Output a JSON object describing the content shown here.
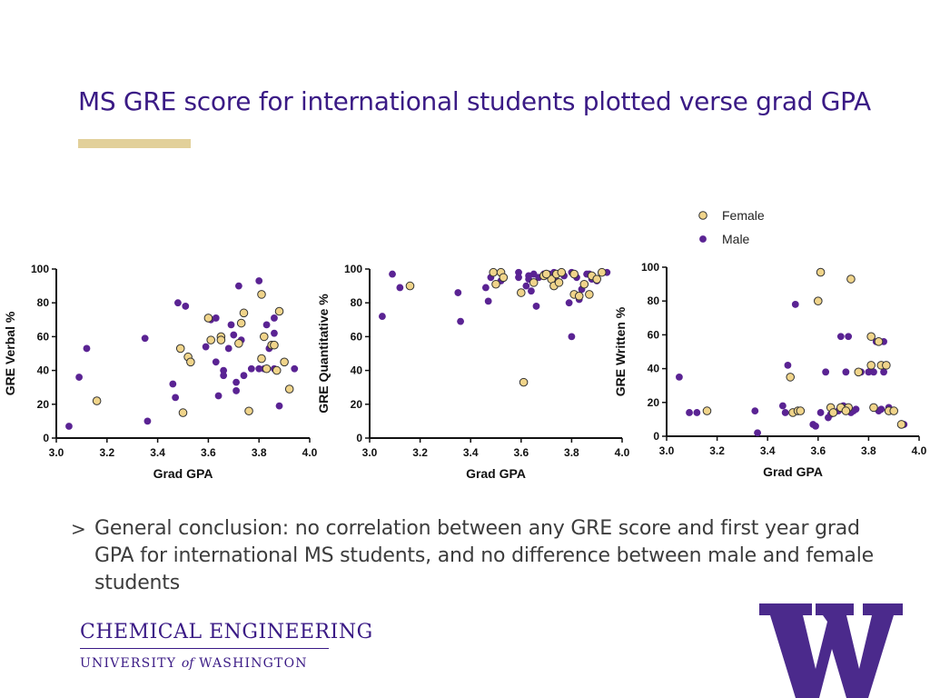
{
  "slide": {
    "title": "MS GRE score for international students plotted verse grad GPA",
    "bullet_marker": ">",
    "bullet": "General conclusion: no correlation between any GRE score and first year grad GPA for international MS students, and no difference between male and female students"
  },
  "footer": {
    "department": "CHEMICAL ENGINEERING",
    "university_before": "UNIVERSITY",
    "university_of": "of",
    "university_after": "WASHINGTON",
    "logo_letter": "W"
  },
  "colors": {
    "title": "#3a1a85",
    "accent_bar": "#e2d09a",
    "female_fill": "#f0d48a",
    "male_fill": "#5a2393",
    "logo": "#4b2a8c"
  },
  "legend": {
    "position": "top-right",
    "entries": [
      {
        "label": "Female",
        "series": "female"
      },
      {
        "label": "Male",
        "series": "male"
      }
    ]
  },
  "chart_data": [
    {
      "type": "scatter",
      "title": "",
      "xlabel": "Grad GPA",
      "ylabel": "GRE Verbal %",
      "xlim": [
        3.0,
        4.0
      ],
      "ylim": [
        0,
        100
      ],
      "xticks": [
        "3.0",
        "3.2",
        "3.4",
        "3.6",
        "3.8",
        "4.0"
      ],
      "yticks": [
        "0",
        "20",
        "40",
        "60",
        "80",
        "100"
      ],
      "grid": false,
      "series": [
        {
          "name": "Female",
          "key": "female",
          "points": [
            [
              3.16,
              22
            ],
            [
              3.49,
              53
            ],
            [
              3.5,
              15
            ],
            [
              3.52,
              48
            ],
            [
              3.53,
              45
            ],
            [
              3.6,
              71
            ],
            [
              3.61,
              58
            ],
            [
              3.65,
              60
            ],
            [
              3.65,
              58
            ],
            [
              3.72,
              56
            ],
            [
              3.73,
              68
            ],
            [
              3.74,
              74
            ],
            [
              3.76,
              16
            ],
            [
              3.81,
              85
            ],
            [
              3.81,
              47
            ],
            [
              3.82,
              60
            ],
            [
              3.83,
              41
            ],
            [
              3.85,
              55
            ],
            [
              3.86,
              55
            ],
            [
              3.87,
              40
            ],
            [
              3.88,
              75
            ],
            [
              3.9,
              45
            ],
            [
              3.92,
              29
            ]
          ]
        },
        {
          "name": "Male",
          "key": "male",
          "points": [
            [
              3.05,
              7
            ],
            [
              3.09,
              36
            ],
            [
              3.12,
              53
            ],
            [
              3.35,
              59
            ],
            [
              3.36,
              10
            ],
            [
              3.46,
              32
            ],
            [
              3.47,
              24
            ],
            [
              3.48,
              80
            ],
            [
              3.51,
              78
            ],
            [
              3.59,
              54
            ],
            [
              3.61,
              70
            ],
            [
              3.63,
              45
            ],
            [
              3.63,
              71
            ],
            [
              3.64,
              25
            ],
            [
              3.66,
              40
            ],
            [
              3.66,
              37
            ],
            [
              3.68,
              53
            ],
            [
              3.69,
              67
            ],
            [
              3.7,
              61
            ],
            [
              3.71,
              33
            ],
            [
              3.71,
              28
            ],
            [
              3.72,
              90
            ],
            [
              3.73,
              58
            ],
            [
              3.74,
              37
            ],
            [
              3.77,
              41
            ],
            [
              3.8,
              93
            ],
            [
              3.8,
              41
            ],
            [
              3.82,
              41
            ],
            [
              3.83,
              67
            ],
            [
              3.84,
              53
            ],
            [
              3.86,
              62
            ],
            [
              3.86,
              71
            ],
            [
              3.88,
              19
            ],
            [
              3.94,
              41
            ],
            [
              3.86,
              41
            ]
          ]
        }
      ]
    },
    {
      "type": "scatter",
      "title": "",
      "xlabel": "Grad GPA",
      "ylabel": "GRE Quantitative %",
      "xlim": [
        3.0,
        4.0
      ],
      "ylim": [
        0,
        100
      ],
      "xticks": [
        "3.0",
        "3.2",
        "3.4",
        "3.6",
        "3.8",
        "4.0"
      ],
      "yticks": [
        "0",
        "20",
        "40",
        "60",
        "80",
        "100"
      ],
      "grid": false,
      "series": [
        {
          "name": "Female",
          "key": "female",
          "points": [
            [
              3.16,
              90
            ],
            [
              3.49,
              98
            ],
            [
              3.5,
              91
            ],
            [
              3.52,
              98
            ],
            [
              3.53,
              95
            ],
            [
              3.6,
              86
            ],
            [
              3.61,
              33
            ],
            [
              3.65,
              92
            ],
            [
              3.69,
              96
            ],
            [
              3.72,
              94
            ],
            [
              3.73,
              90
            ],
            [
              3.74,
              97
            ],
            [
              3.76,
              98
            ],
            [
              3.81,
              97
            ],
            [
              3.81,
              85
            ],
            [
              3.83,
              84
            ],
            [
              3.85,
              91
            ],
            [
              3.87,
              85
            ],
            [
              3.88,
              96
            ],
            [
              3.9,
              94
            ],
            [
              3.92,
              98
            ],
            [
              3.75,
              92
            ],
            [
              3.7,
              97
            ]
          ]
        },
        {
          "name": "Male",
          "key": "male",
          "points": [
            [
              3.05,
              72
            ],
            [
              3.09,
              97
            ],
            [
              3.12,
              89
            ],
            [
              3.35,
              86
            ],
            [
              3.36,
              69
            ],
            [
              3.46,
              89
            ],
            [
              3.47,
              81
            ],
            [
              3.48,
              95
            ],
            [
              3.52,
              93
            ],
            [
              3.59,
              98
            ],
            [
              3.59,
              95
            ],
            [
              3.62,
              90
            ],
            [
              3.63,
              94
            ],
            [
              3.64,
              87
            ],
            [
              3.65,
              97
            ],
            [
              3.66,
              78
            ],
            [
              3.67,
              95
            ],
            [
              3.69,
              97
            ],
            [
              3.71,
              97
            ],
            [
              3.72,
              96
            ],
            [
              3.73,
              98
            ],
            [
              3.74,
              93
            ],
            [
              3.77,
              96
            ],
            [
              3.79,
              80
            ],
            [
              3.8,
              60
            ],
            [
              3.8,
              98
            ],
            [
              3.82,
              95
            ],
            [
              3.83,
              82
            ],
            [
              3.84,
              88
            ],
            [
              3.86,
              97
            ],
            [
              3.87,
              97
            ],
            [
              3.88,
              94
            ],
            [
              3.9,
              93
            ],
            [
              3.94,
              98
            ],
            [
              3.63,
              96
            ]
          ]
        }
      ]
    },
    {
      "type": "scatter",
      "title": "",
      "xlabel": "Grad GPA",
      "ylabel": "GRE Written %",
      "xlim": [
        3.0,
        4.0
      ],
      "ylim": [
        0,
        100
      ],
      "xticks": [
        "3.0",
        "3.2",
        "3.4",
        "3.6",
        "3.8",
        "4.0"
      ],
      "yticks": [
        "0",
        "20",
        "40",
        "60",
        "80",
        "100"
      ],
      "grid": false,
      "series": [
        {
          "name": "Female",
          "key": "female",
          "points": [
            [
              3.16,
              15
            ],
            [
              3.49,
              35
            ],
            [
              3.5,
              14
            ],
            [
              3.52,
              15
            ],
            [
              3.53,
              15
            ],
            [
              3.6,
              80
            ],
            [
              3.61,
              97
            ],
            [
              3.65,
              17
            ],
            [
              3.69,
              17
            ],
            [
              3.72,
              17
            ],
            [
              3.73,
              93
            ],
            [
              3.76,
              38
            ],
            [
              3.81,
              59
            ],
            [
              3.81,
              42
            ],
            [
              3.82,
              17
            ],
            [
              3.84,
              56
            ],
            [
              3.85,
              42
            ],
            [
              3.87,
              42
            ],
            [
              3.88,
              15
            ],
            [
              3.9,
              15
            ],
            [
              3.93,
              7
            ],
            [
              3.66,
              14
            ],
            [
              3.71,
              15
            ]
          ]
        },
        {
          "name": "Male",
          "key": "male",
          "points": [
            [
              3.05,
              35
            ],
            [
              3.09,
              14
            ],
            [
              3.12,
              14
            ],
            [
              3.35,
              15
            ],
            [
              3.36,
              2
            ],
            [
              3.46,
              18
            ],
            [
              3.47,
              14
            ],
            [
              3.48,
              42
            ],
            [
              3.51,
              78
            ],
            [
              3.59,
              6
            ],
            [
              3.61,
              14
            ],
            [
              3.63,
              38
            ],
            [
              3.64,
              11
            ],
            [
              3.66,
              14
            ],
            [
              3.68,
              15
            ],
            [
              3.69,
              59
            ],
            [
              3.7,
              18
            ],
            [
              3.71,
              38
            ],
            [
              3.72,
              59
            ],
            [
              3.73,
              14
            ],
            [
              3.74,
              15
            ],
            [
              3.77,
              38
            ],
            [
              3.8,
              38
            ],
            [
              3.82,
              38
            ],
            [
              3.83,
              56
            ],
            [
              3.84,
              15
            ],
            [
              3.86,
              56
            ],
            [
              3.86,
              38
            ],
            [
              3.88,
              17
            ],
            [
              3.94,
              7
            ],
            [
              3.85,
              16
            ],
            [
              3.75,
              16
            ],
            [
              3.65,
              13
            ],
            [
              3.58,
              7
            ],
            [
              3.7,
              16
            ]
          ]
        }
      ]
    }
  ]
}
